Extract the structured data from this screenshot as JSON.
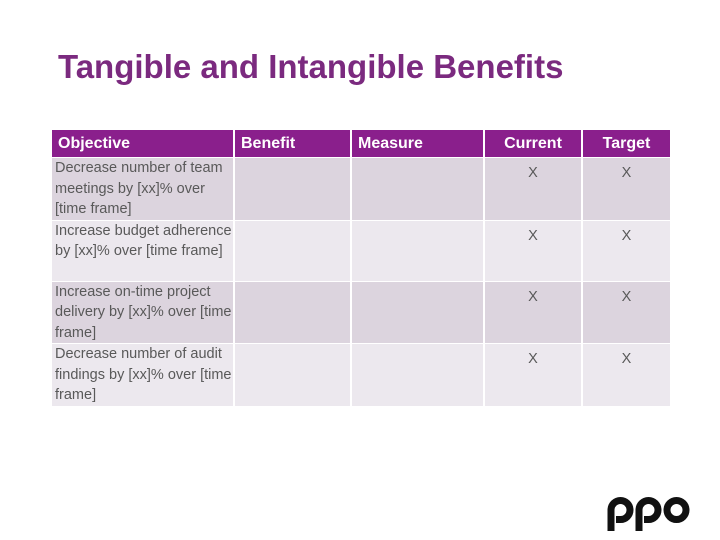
{
  "slide": {
    "title": "Tangible and Intangible Benefits"
  },
  "table": {
    "headers": {
      "objective": "Objective",
      "benefit": "Benefit",
      "measure": "Measure",
      "current": "Current",
      "target": "Target"
    },
    "rows": [
      {
        "objective": "Decrease number of team meetings by [xx]% over [time frame]",
        "benefit": "",
        "measure": "",
        "current": "X",
        "target": "X"
      },
      {
        "objective": "Increase budget adherence by [xx]% over [time frame]",
        "benefit": "",
        "measure": "",
        "current": "X",
        "target": "X"
      },
      {
        "objective": "Increase on-time project delivery by [xx]% over [time frame]",
        "benefit": "",
        "measure": "",
        "current": "X",
        "target": "X"
      },
      {
        "objective": "Decrease number of audit findings by [xx]% over [time frame]",
        "benefit": "",
        "measure": "",
        "current": "X",
        "target": "X"
      }
    ]
  },
  "logo": {
    "text": "ppo",
    "icon": "ppo-logo-icon",
    "color": "#111111"
  },
  "colors": {
    "title": "#7b2a7f",
    "header_bg": "#8a1f8c",
    "row_dark": "#dcd4de",
    "row_light": "#ece8ee"
  }
}
